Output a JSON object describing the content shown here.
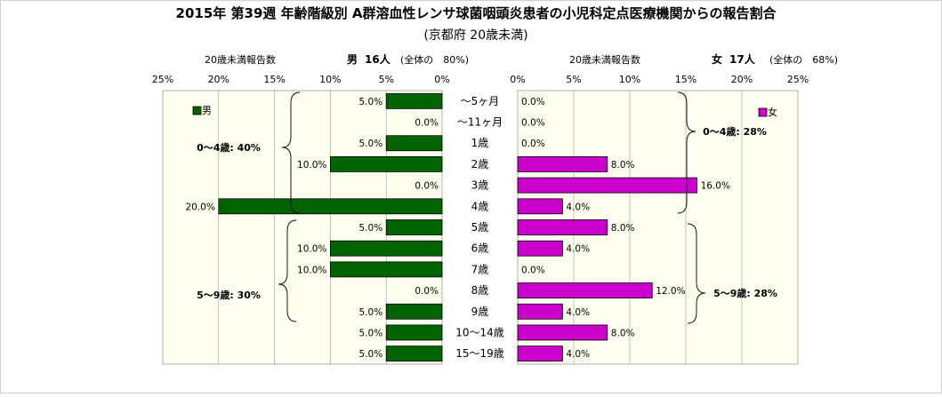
{
  "title": "2015年 第39週 年齢階級別 A群溶血性レンサ球菌咽頭炎患者の小児科定点医療機関からの報告割合",
  "subtitle": "(京都府 20歳未満)",
  "chart_data": {
    "type": "bar",
    "categories": [
      "～5ヶ月",
      "～11ヶ月",
      "1歳",
      "2歳",
      "3歳",
      "4歳",
      "5歳",
      "6歳",
      "7歳",
      "8歳",
      "9歳",
      "10～14歳",
      "15～19歳"
    ],
    "male": {
      "header_label": "20歳未満報告数",
      "header_sex": "男",
      "header_count": "16人",
      "header_share": "(全体の　80%)",
      "legend": "男",
      "color": "#006400",
      "values": [
        5.0,
        0.0,
        5.0,
        10.0,
        0.0,
        20.0,
        5.0,
        10.0,
        10.0,
        0.0,
        5.0,
        5.0,
        5.0
      ],
      "group_labels": [
        "0～4歳: 40%",
        "5～9歳: 30%"
      ]
    },
    "female": {
      "header_label": "20歳未満報告数",
      "header_sex": "女",
      "header_count": "17人",
      "header_share": "(全体の　68%)",
      "legend": "女",
      "color": "#cc00cc",
      "values": [
        0.0,
        0.0,
        0.0,
        8.0,
        16.0,
        4.0,
        8.0,
        4.0,
        0.0,
        12.0,
        4.0,
        8.0,
        4.0
      ],
      "group_labels": [
        "0～4歳: 28%",
        "5～9歳: 28%"
      ]
    },
    "xlim": [
      0,
      25
    ],
    "ticks": [
      25,
      20,
      15,
      10,
      5,
      0
    ],
    "tick_labels": [
      "25%",
      "20%",
      "15%",
      "10%",
      "5%",
      "0%"
    ],
    "female_ticks": [
      0,
      5,
      10,
      15,
      20,
      25
    ],
    "female_tick_labels": [
      "0%",
      "5%",
      "10%",
      "15%",
      "20%",
      "25%"
    ],
    "plot_background": "#fffff0",
    "grid": true
  }
}
